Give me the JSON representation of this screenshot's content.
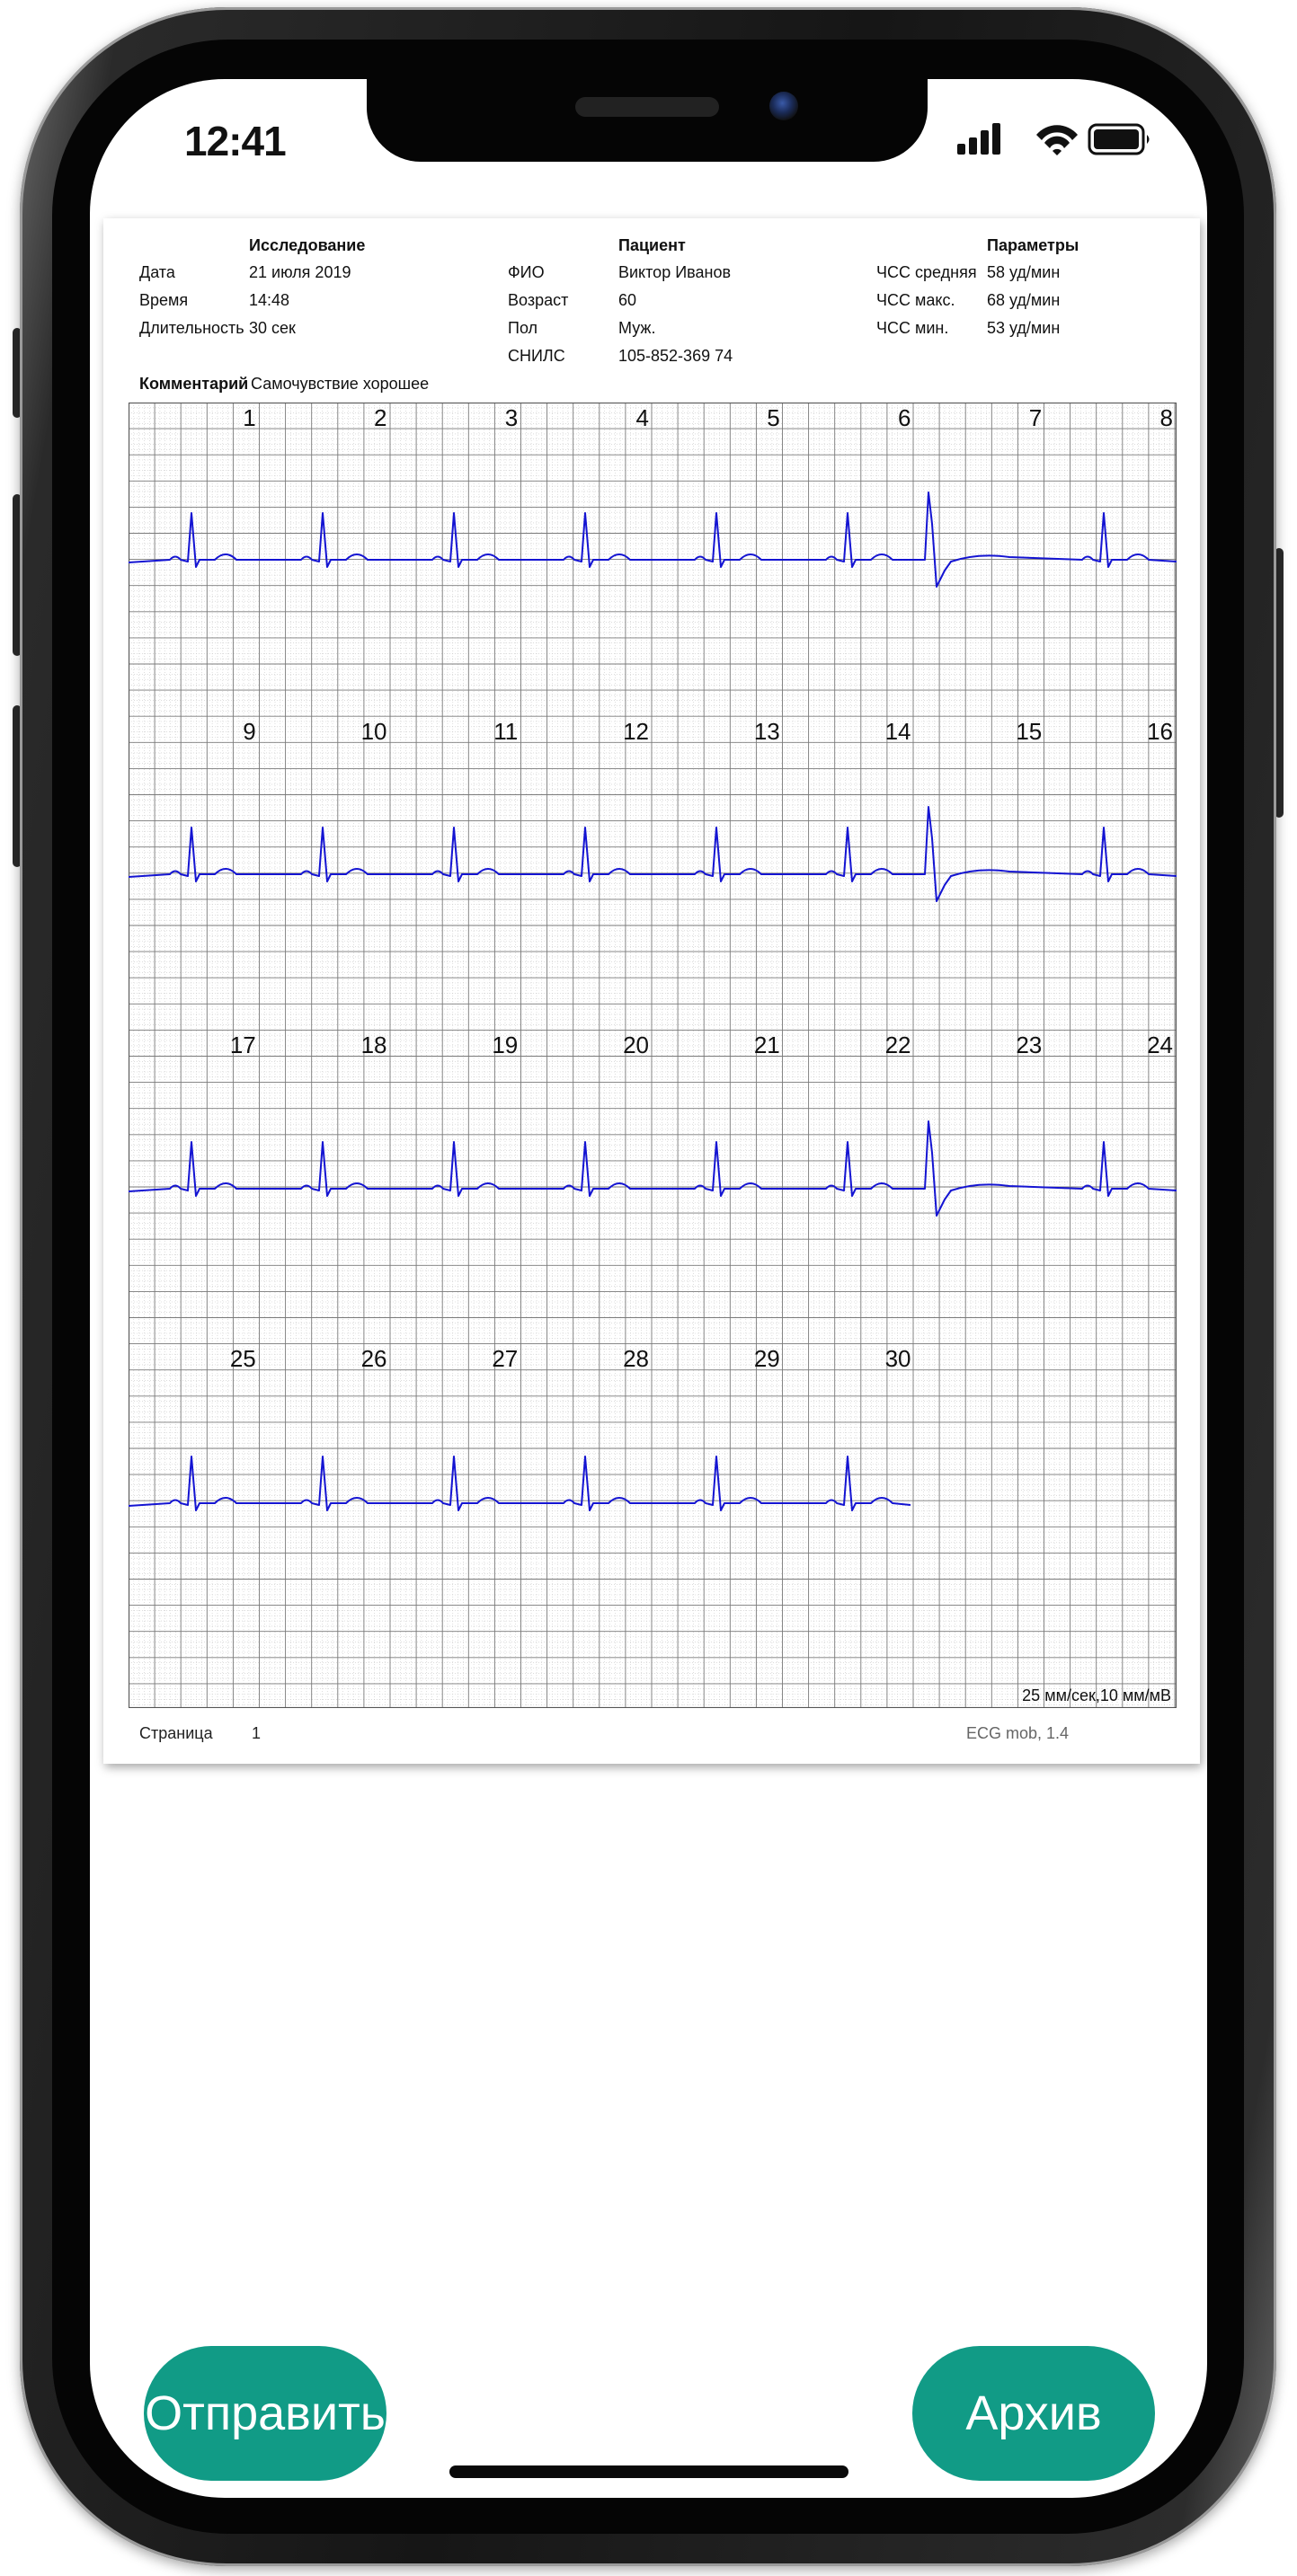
{
  "status_bar": {
    "time": "12:41",
    "icons": [
      "signal-icon",
      "wifi-icon",
      "battery-icon"
    ]
  },
  "report": {
    "study": {
      "heading": "Исследование",
      "rows": [
        {
          "label": "Дата",
          "value": "21 июля 2019"
        },
        {
          "label": "Время",
          "value": "14:48"
        },
        {
          "label": "Длительность",
          "value": "30 сек"
        }
      ]
    },
    "patient": {
      "heading": "Пациент",
      "rows": [
        {
          "label": "ФИО",
          "value": "Виктор Иванов"
        },
        {
          "label": "Возраст",
          "value": "60"
        },
        {
          "label": "Пол",
          "value": "Муж."
        },
        {
          "label": "СНИЛС",
          "value": "105-852-369 74"
        }
      ]
    },
    "params": {
      "heading": "Параметры",
      "rows": [
        {
          "label": "ЧСС средняя",
          "value": "58 уд/мин"
        },
        {
          "label": "ЧСС макс.",
          "value": "68 уд/мин"
        },
        {
          "label": "ЧСС мин.",
          "value": "53 уд/мин"
        }
      ]
    },
    "comment": {
      "label": "Комментарий",
      "value": "Самочувствие хорошее"
    },
    "ecg": {
      "second_labels": [
        [
          "1",
          "2",
          "3",
          "4",
          "5",
          "6",
          "7",
          "8"
        ],
        [
          "9",
          "10",
          "11",
          "12",
          "13",
          "14",
          "15",
          "16"
        ],
        [
          "17",
          "18",
          "19",
          "20",
          "21",
          "22",
          "23",
          "24"
        ],
        [
          "25",
          "26",
          "27",
          "28",
          "29",
          "30"
        ]
      ],
      "trace_color": "#1414d2",
      "scale": "25 мм/сек,10 мм/мВ"
    },
    "footer": {
      "page_label": "Страница",
      "page_number": "1",
      "version": "ECG mob, 1.4"
    }
  },
  "buttons": {
    "send": "Отправить",
    "archive": "Архив"
  },
  "colors": {
    "accent": "#119b86",
    "grid_major": "#7a7a7a",
    "grid_minor": "#c8c8c8"
  }
}
